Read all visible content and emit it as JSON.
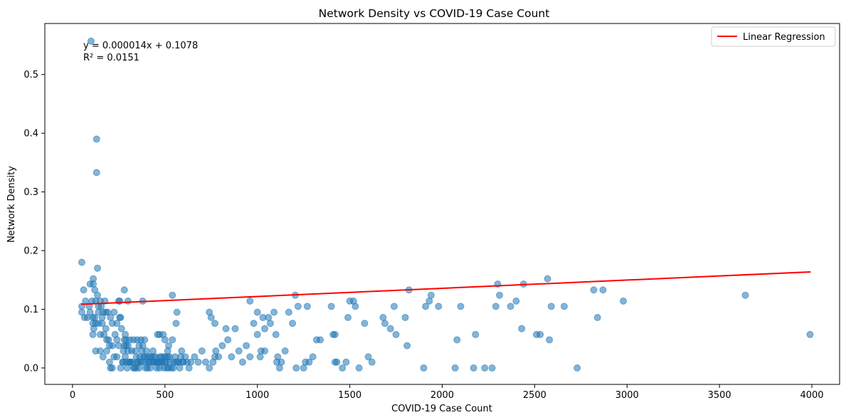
{
  "chart_data": {
    "type": "scatter",
    "title": "Network Density vs COVID-19 Case Count",
    "xlabel": "COVID-19 Case Count",
    "ylabel": "Network Density",
    "xlim": [
      -150,
      4150
    ],
    "ylim": [
      -0.028,
      0.587
    ],
    "xticks": [
      0,
      500,
      1000,
      1500,
      2000,
      2500,
      3000,
      3500,
      4000
    ],
    "yticks": [
      0.0,
      0.1,
      0.2,
      0.3,
      0.4,
      0.5
    ],
    "xtick_labels": [
      "0",
      "500",
      "1000",
      "1500",
      "2000",
      "2500",
      "3000",
      "3500",
      "4000"
    ],
    "ytick_labels": [
      "0.0",
      "0.1",
      "0.2",
      "0.3",
      "0.4",
      "0.5"
    ],
    "grid": false,
    "legend_position": "top-right",
    "annotation": [
      "y = 0.000014x + 0.1078",
      "R² = 0.0151"
    ],
    "colors": {
      "points": "#1f77b4",
      "regression": "#ff0000"
    },
    "regression": {
      "name": "Linear Regression",
      "slope": 1.4e-05,
      "intercept": 0.1078,
      "r2": 0.0151,
      "x_range": [
        47,
        3993
      ]
    },
    "series": [
      {
        "type": "scatter",
        "points": [
          [
            100,
            0.557
          ],
          [
            130,
            0.39
          ],
          [
            130,
            0.333
          ],
          [
            135,
            0.17
          ],
          [
            50,
            0.18
          ],
          [
            60,
            0.133
          ],
          [
            95,
            0.143
          ],
          [
            112,
            0.152
          ],
          [
            112,
            0.143
          ],
          [
            120,
            0.133
          ],
          [
            135,
            0.124
          ],
          [
            125,
            0.114
          ],
          [
            70,
            0.114
          ],
          [
            105,
            0.114
          ],
          [
            150,
            0.114
          ],
          [
            175,
            0.114
          ],
          [
            50,
            0.105
          ],
          [
            90,
            0.105
          ],
          [
            140,
            0.105
          ],
          [
            155,
            0.105
          ],
          [
            165,
            0.095
          ],
          [
            180,
            0.095
          ],
          [
            190,
            0.095
          ],
          [
            50,
            0.095
          ],
          [
            65,
            0.086
          ],
          [
            80,
            0.086
          ],
          [
            95,
            0.095
          ],
          [
            110,
            0.086
          ],
          [
            120,
            0.086
          ],
          [
            140,
            0.095
          ],
          [
            160,
            0.086
          ],
          [
            205,
            0.086
          ],
          [
            110,
            0.076
          ],
          [
            125,
            0.076
          ],
          [
            140,
            0.076
          ],
          [
            160,
            0.076
          ],
          [
            180,
            0.067
          ],
          [
            115,
            0.067
          ],
          [
            110,
            0.057
          ],
          [
            150,
            0.057
          ],
          [
            170,
            0.057
          ],
          [
            185,
            0.048
          ],
          [
            195,
            0.048
          ],
          [
            200,
            0.038
          ],
          [
            215,
            0.038
          ],
          [
            230,
            0.057
          ],
          [
            240,
            0.048
          ],
          [
            250,
            0.038
          ],
          [
            125,
            0.029
          ],
          [
            150,
            0.029
          ],
          [
            165,
            0.019
          ],
          [
            185,
            0.029
          ],
          [
            200,
            0.01
          ],
          [
            205,
            0.0
          ],
          [
            215,
            0.0
          ],
          [
            225,
            0.019
          ],
          [
            240,
            0.019
          ],
          [
            250,
            0.114
          ],
          [
            255,
            0.114
          ],
          [
            280,
            0.133
          ],
          [
            300,
            0.114
          ],
          [
            225,
            0.095
          ],
          [
            255,
            0.086
          ],
          [
            260,
            0.086
          ],
          [
            265,
            0.067
          ],
          [
            215,
            0.076
          ],
          [
            240,
            0.076
          ],
          [
            260,
            0.0
          ],
          [
            275,
            0.029
          ],
          [
            280,
            0.038
          ],
          [
            290,
            0.038
          ],
          [
            300,
            0.038
          ],
          [
            270,
            0.01
          ],
          [
            290,
            0.01
          ],
          [
            305,
            0.01
          ],
          [
            315,
            0.01
          ],
          [
            325,
            0.01
          ],
          [
            335,
            0.0
          ],
          [
            345,
            0.0
          ],
          [
            355,
            0.01
          ],
          [
            365,
            0.019
          ],
          [
            375,
            0.029
          ],
          [
            385,
            0.019
          ],
          [
            395,
            0.01
          ],
          [
            405,
            0.0
          ],
          [
            415,
            0.01
          ],
          [
            425,
            0.019
          ],
          [
            435,
            0.029
          ],
          [
            445,
            0.01
          ],
          [
            455,
            0.0
          ],
          [
            465,
            0.01
          ],
          [
            475,
            0.019
          ],
          [
            485,
            0.01
          ],
          [
            495,
            0.0
          ],
          [
            505,
            0.01
          ],
          [
            515,
            0.019
          ],
          [
            525,
            0.01
          ],
          [
            535,
            0.0
          ],
          [
            545,
            0.01
          ],
          [
            555,
            0.019
          ],
          [
            565,
            0.01
          ],
          [
            575,
            0.01
          ],
          [
            585,
            0.019
          ],
          [
            595,
            0.01
          ],
          [
            280,
            0.048
          ],
          [
            285,
            0.057
          ],
          [
            290,
            0.048
          ],
          [
            310,
            0.048
          ],
          [
            330,
            0.048
          ],
          [
            350,
            0.048
          ],
          [
            370,
            0.048
          ],
          [
            390,
            0.048
          ],
          [
            300,
            0.029
          ],
          [
            320,
            0.029
          ],
          [
            340,
            0.029
          ],
          [
            360,
            0.038
          ],
          [
            380,
            0.038
          ],
          [
            400,
            0.029
          ],
          [
            420,
            0.019
          ],
          [
            440,
            0.019
          ],
          [
            460,
            0.057
          ],
          [
            470,
            0.057
          ],
          [
            500,
            0.048
          ],
          [
            520,
            0.038
          ],
          [
            540,
            0.048
          ],
          [
            560,
            0.076
          ],
          [
            565,
            0.095
          ],
          [
            540,
            0.124
          ],
          [
            380,
            0.114
          ],
          [
            490,
            0.057
          ],
          [
            505,
            0.019
          ],
          [
            515,
            0.029
          ],
          [
            345,
            0.019
          ],
          [
            365,
            0.01
          ],
          [
            395,
            0.0
          ],
          [
            410,
            0.01
          ],
          [
            430,
            0.01
          ],
          [
            450,
            0.019
          ],
          [
            470,
            0.01
          ],
          [
            480,
            0.019
          ],
          [
            500,
            0.01
          ],
          [
            520,
            0.0
          ],
          [
            590,
            0.029
          ],
          [
            610,
            0.019
          ],
          [
            620,
            0.01
          ],
          [
            630,
            0.0
          ],
          [
            640,
            0.01
          ],
          [
            660,
            0.019
          ],
          [
            680,
            0.01
          ],
          [
            700,
            0.029
          ],
          [
            720,
            0.01
          ],
          [
            740,
            0.0
          ],
          [
            760,
            0.01
          ],
          [
            770,
            0.019
          ],
          [
            790,
            0.019
          ],
          [
            810,
            0.038
          ],
          [
            830,
            0.067
          ],
          [
            840,
            0.048
          ],
          [
            860,
            0.019
          ],
          [
            880,
            0.067
          ],
          [
            900,
            0.029
          ],
          [
            920,
            0.01
          ],
          [
            940,
            0.038
          ],
          [
            960,
            0.019
          ],
          [
            980,
            0.076
          ],
          [
            1000,
            0.057
          ],
          [
            1020,
            0.029
          ],
          [
            1040,
            0.029
          ],
          [
            740,
            0.095
          ],
          [
            750,
            0.086
          ],
          [
            770,
            0.076
          ],
          [
            775,
            0.029
          ],
          [
            960,
            0.114
          ],
          [
            1000,
            0.095
          ],
          [
            1030,
            0.086
          ],
          [
            1040,
            0.067
          ],
          [
            1060,
            0.086
          ],
          [
            1070,
            0.076
          ],
          [
            1090,
            0.095
          ],
          [
            1100,
            0.057
          ],
          [
            1110,
            0.019
          ],
          [
            1120,
            0.0
          ],
          [
            1130,
            0.01
          ],
          [
            1150,
            0.029
          ],
          [
            1170,
            0.095
          ],
          [
            1190,
            0.076
          ],
          [
            1205,
            0.124
          ],
          [
            1210,
            0.0
          ],
          [
            1220,
            0.105
          ],
          [
            1250,
            0.0
          ],
          [
            1260,
            0.01
          ],
          [
            1270,
            0.105
          ],
          [
            1280,
            0.01
          ],
          [
            1300,
            0.019
          ],
          [
            1320,
            0.048
          ],
          [
            1340,
            0.048
          ],
          [
            1400,
            0.105
          ],
          [
            1410,
            0.057
          ],
          [
            1420,
            0.057
          ],
          [
            1420,
            0.01
          ],
          [
            1430,
            0.01
          ],
          [
            1460,
            0.0
          ],
          [
            1480,
            0.01
          ],
          [
            1490,
            0.086
          ],
          [
            1500,
            0.114
          ],
          [
            1520,
            0.114
          ],
          [
            1530,
            0.105
          ],
          [
            1550,
            0.0
          ],
          [
            1580,
            0.076
          ],
          [
            1600,
            0.019
          ],
          [
            1620,
            0.01
          ],
          [
            1680,
            0.086
          ],
          [
            1690,
            0.076
          ],
          [
            1720,
            0.067
          ],
          [
            1740,
            0.105
          ],
          [
            1750,
            0.057
          ],
          [
            1800,
            0.086
          ],
          [
            1810,
            0.038
          ],
          [
            1820,
            0.133
          ],
          [
            1900,
            0.0
          ],
          [
            1910,
            0.105
          ],
          [
            1930,
            0.114
          ],
          [
            1940,
            0.124
          ],
          [
            1980,
            0.105
          ],
          [
            2070,
            0.0
          ],
          [
            2080,
            0.048
          ],
          [
            2100,
            0.105
          ],
          [
            2170,
            0.0
          ],
          [
            2180,
            0.057
          ],
          [
            2230,
            0.0
          ],
          [
            2270,
            0.0
          ],
          [
            2290,
            0.105
          ],
          [
            2300,
            0.143
          ],
          [
            2310,
            0.124
          ],
          [
            2370,
            0.105
          ],
          [
            2400,
            0.114
          ],
          [
            2430,
            0.067
          ],
          [
            2440,
            0.143
          ],
          [
            2510,
            0.057
          ],
          [
            2530,
            0.057
          ],
          [
            2570,
            0.152
          ],
          [
            2580,
            0.048
          ],
          [
            2590,
            0.105
          ],
          [
            2660,
            0.105
          ],
          [
            2730,
            0.0
          ],
          [
            2820,
            0.133
          ],
          [
            2840,
            0.086
          ],
          [
            2870,
            0.133
          ],
          [
            2980,
            0.114
          ],
          [
            3640,
            0.124
          ],
          [
            3990,
            0.057
          ],
          [
            275,
            0.01
          ],
          [
            285,
            0.019
          ],
          [
            295,
            0.0
          ],
          [
            310,
            0.01
          ],
          [
            330,
            0.0
          ],
          [
            350,
            0.01
          ],
          [
            360,
            0.0
          ],
          [
            375,
            0.01
          ],
          [
            390,
            0.019
          ],
          [
            405,
            0.019
          ],
          [
            420,
            0.0
          ],
          [
            440,
            0.01
          ],
          [
            455,
            0.01
          ],
          [
            470,
            0.0
          ],
          [
            480,
            0.01
          ],
          [
            495,
            0.019
          ],
          [
            510,
            0.0
          ],
          [
            525,
            0.019
          ],
          [
            545,
            0.0
          ],
          [
            560,
            0.01
          ],
          [
            580,
            0.0
          ],
          [
            600,
            0.01
          ],
          [
            1015,
            0.019
          ],
          [
            1105,
            0.01
          ]
        ]
      }
    ]
  }
}
